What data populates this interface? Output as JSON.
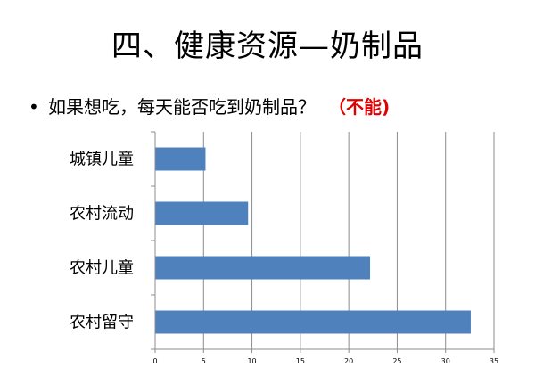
{
  "slide": {
    "title": "四、健康资源—奶制品",
    "bullet_symbol": "•",
    "question": "如果想吃，每天能否吃到奶制品？",
    "answer": "（不能)"
  },
  "chart_data": {
    "type": "bar",
    "orientation": "horizontal",
    "categories": [
      "城镇儿童",
      "农村流动",
      "农村儿童",
      "农村留守"
    ],
    "values": [
      5.2,
      9.6,
      22.2,
      32.6
    ],
    "xlim": [
      0,
      35
    ],
    "xticks": [
      0,
      5,
      10,
      15,
      20,
      25,
      30,
      35
    ],
    "grid": true,
    "bar_color": "#4f81bd",
    "title": "",
    "xlabel": "",
    "ylabel": ""
  }
}
